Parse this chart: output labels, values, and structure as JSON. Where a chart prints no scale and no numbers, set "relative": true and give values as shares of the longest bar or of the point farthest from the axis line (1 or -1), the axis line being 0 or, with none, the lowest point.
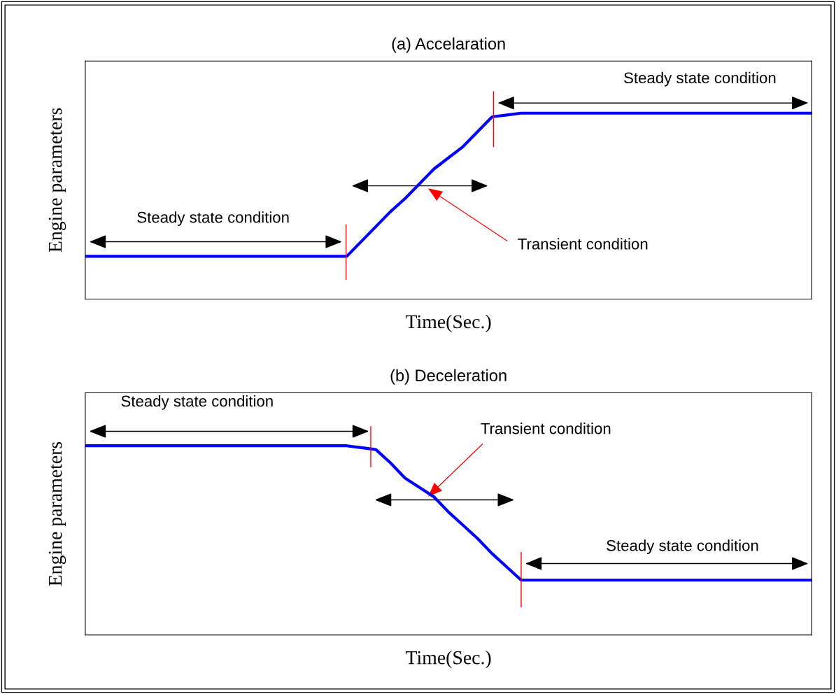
{
  "chart_data": [
    {
      "type": "line",
      "title": "(a) Accelaration",
      "xlabel": "Time(Sec.)",
      "ylabel": "Engine parameters",
      "relative": true,
      "categories": [
        null,
        null,
        null,
        null,
        null,
        null,
        null,
        null,
        null,
        null,
        null,
        null,
        null,
        null,
        null,
        null,
        null,
        null,
        null,
        null,
        null,
        null,
        null,
        null,
        null,
        null,
        null,
        null,
        null,
        null,
        null,
        null,
        null,
        null,
        null,
        null,
        null,
        null,
        null,
        null,
        null,
        null,
        null,
        null,
        null,
        null,
        null,
        null,
        null,
        null,
        null
      ],
      "series": [
        {
          "color": "#0000ff",
          "values": [
            0.23,
            0.23,
            0.23,
            0.23,
            0.23,
            0.23,
            0.23,
            0.23,
            0.23,
            0.23,
            0.23,
            0.23,
            0.23,
            0.23,
            0.23,
            0.23,
            0.23,
            0.23,
            0.23,
            0.31,
            0.39,
            0.47,
            0.54,
            0.62,
            0.7,
            0.76,
            0.82,
            0.9,
            0.98,
            0.99,
            1,
            1,
            1,
            1,
            1,
            1,
            1,
            1,
            1,
            1,
            1,
            1,
            1,
            1,
            1,
            1,
            1,
            1,
            1,
            1,
            1
          ]
        }
      ],
      "annotations": [
        "Steady state condition",
        "Transient condition",
        "Steady state condition"
      ]
    },
    {
      "type": "line",
      "title": "(b) Deceleration",
      "xlabel": "Time(Sec.)",
      "ylabel": "Engine parameters",
      "relative": true,
      "categories": [
        null,
        null,
        null,
        null,
        null,
        null,
        null,
        null,
        null,
        null,
        null,
        null,
        null,
        null,
        null,
        null,
        null,
        null,
        null,
        null,
        null,
        null,
        null,
        null,
        null,
        null,
        null,
        null,
        null,
        null,
        null,
        null,
        null,
        null,
        null,
        null,
        null,
        null,
        null,
        null,
        null,
        null,
        null,
        null,
        null,
        null,
        null,
        null,
        null,
        null,
        null
      ],
      "series": [
        {
          "color": "#0000ff",
          "values": [
            1,
            1,
            1,
            1,
            1,
            1,
            1,
            1,
            1,
            1,
            1,
            1,
            1,
            1,
            1,
            1,
            1,
            1,
            1,
            0.99,
            0.98,
            0.91,
            0.83,
            0.78,
            0.73,
            0.65,
            0.58,
            0.51,
            0.43,
            0.36,
            0.29,
            0.29,
            0.29,
            0.29,
            0.29,
            0.29,
            0.29,
            0.29,
            0.29,
            0.29,
            0.29,
            0.29,
            0.29,
            0.29,
            0.29,
            0.29,
            0.29,
            0.29,
            0.29,
            0.29,
            0.29
          ]
        }
      ],
      "annotations": [
        "Steady state condition",
        "Transient condition",
        "Steady state condition"
      ]
    }
  ]
}
